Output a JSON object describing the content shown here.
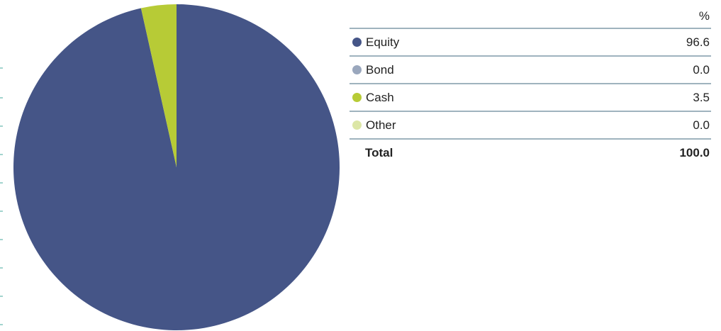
{
  "chart_data": {
    "type": "pie",
    "value_header": "%",
    "slices": [
      {
        "label": "Equity",
        "value": "96.6",
        "color": "#455587"
      },
      {
        "label": "Bond",
        "value": "0.0",
        "color": "#9aa7bd"
      },
      {
        "label": "Cash",
        "value": "3.5",
        "color": "#b7cb36"
      },
      {
        "label": "Other",
        "value": "0.0",
        "color": "#dce6a6"
      }
    ],
    "total": {
      "label": "Total",
      "value": "100.0"
    }
  },
  "colors": {
    "rule": "#9fb3be",
    "tick": "#44a99c"
  }
}
